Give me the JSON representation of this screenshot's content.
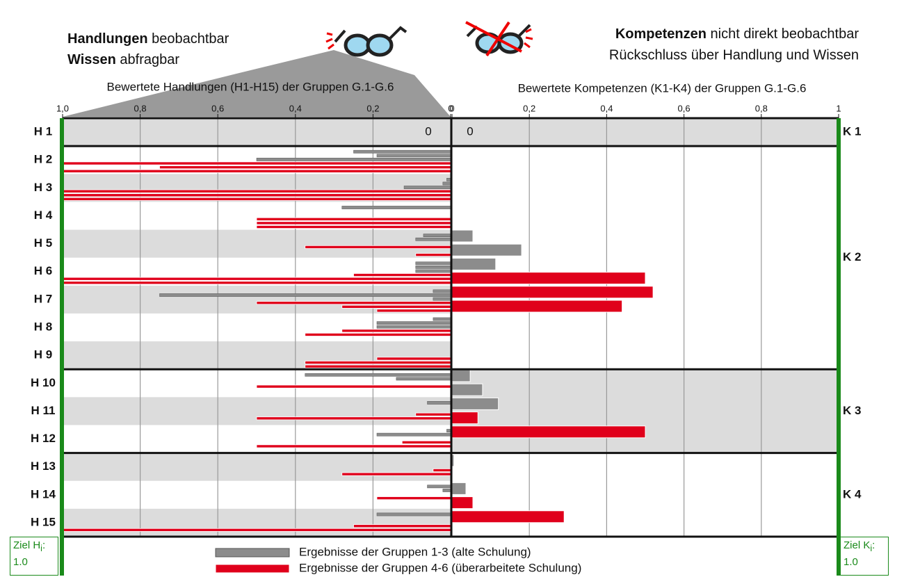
{
  "header": {
    "left_line1_bold": "Handlungen",
    "left_line1": " beobachtbar",
    "left_line2_bold": "Wissen",
    "left_line2": " abfragbar",
    "right_line1_bold": "Kompetenzen",
    "right_line1": " nicht direkt beobachtbar",
    "right_line2": "Rückschluss über Handlung und Wissen"
  },
  "goal_left": {
    "label": "Ziel H",
    "sub": "i",
    "colon": ":",
    "value": "1.0"
  },
  "goal_right": {
    "label": "Ziel K",
    "sub": "i",
    "colon": ":",
    "value": "1.0"
  },
  "chart_data": [
    {
      "type": "bar",
      "orientation": "horizontal",
      "title": "Bewertete Handlungen (H1-H15) der Gruppen G.1-G.6",
      "categories": [
        "H 1",
        "H 2",
        "H 3",
        "H 4",
        "H 5",
        "H 6",
        "H 7",
        "H 8",
        "H 9",
        "H 10",
        "H 11",
        "H 12",
        "H 13",
        "H 14",
        "H 15"
      ],
      "xlim": [
        1,
        0
      ],
      "xticks": [
        {
          "value": 1,
          "label": "1,0"
        },
        {
          "value": 0.8,
          "label": "0,8"
        },
        {
          "value": 0.6,
          "label": "0,6"
        },
        {
          "value": 0.4,
          "label": "0,4"
        },
        {
          "value": 0.2,
          "label": "0,2"
        },
        0
      ],
      "grid": true,
      "series": [
        {
          "name": "Ergebnisse der Gruppen 1-3 (alte Schulung)",
          "color": "#8c8c8c",
          "values": [
            [
              0,
              0,
              0
            ],
            [
              0.25,
              0.19,
              0.5
            ],
            [
              0.01,
              0.02,
              0.12
            ],
            [
              0.28,
              0,
              0
            ],
            [
              0.07,
              0.09,
              0
            ],
            [
              0.09,
              0.09,
              0.09
            ],
            [
              0.045,
              0.75,
              0.045
            ],
            [
              0.045,
              0.19,
              0.19
            ],
            [
              0,
              0,
              0
            ],
            [
              0.375,
              0.14,
              0
            ],
            [
              0.06,
              0,
              0
            ],
            [
              0.01,
              0.19,
              0
            ],
            [
              0,
              0,
              0
            ],
            [
              0.06,
              0.02,
              0
            ],
            [
              0.19,
              0,
              0
            ]
          ]
        },
        {
          "name": "Ergebnisse der Gruppen 4-6 (überarbeitete Schulung)",
          "color": "#e0001b",
          "values": [
            [
              0,
              0,
              0
            ],
            [
              1,
              0.75,
              1
            ],
            [
              1,
              1,
              1
            ],
            [
              0.5,
              0.5,
              0.5
            ],
            [
              0.375,
              0,
              0.09
            ],
            [
              0.25,
              1,
              1
            ],
            [
              0.5,
              0.28,
              0.19
            ],
            [
              0.28,
              0.375,
              0
            ],
            [
              0.19,
              0.375,
              0.375
            ],
            [
              0.5,
              0,
              0
            ],
            [
              0.09,
              0.5,
              0
            ],
            [
              0.125,
              0.5,
              0
            ],
            [
              0.045,
              0.28,
              0
            ],
            [
              0.19,
              0,
              0
            ],
            [
              0.25,
              1,
              0
            ]
          ]
        }
      ]
    },
    {
      "type": "bar",
      "orientation": "horizontal",
      "title": "Bewertete Kompetenzen (K1-K4) der Gruppen G.1-G.6",
      "categories": [
        "K 1",
        "K 2",
        "K 3",
        "K 4"
      ],
      "xlim": [
        0,
        1
      ],
      "xticks": [
        0,
        {
          "value": 0.2,
          "label": "0,2"
        },
        {
          "value": 0.4,
          "label": "0,4"
        },
        {
          "value": 0.6,
          "label": "0,6"
        },
        {
          "value": 0.8,
          "label": "0,8"
        },
        1
      ],
      "grid": true,
      "series": [
        {
          "color": "#8c8c8c",
          "values": [
            [
              0,
              0,
              0
            ],
            [
              0.054,
              0.18,
              0.113
            ],
            [
              0.047,
              0.079,
              0.12
            ],
            [
              0.005,
              0,
              0.036
            ]
          ]
        },
        {
          "color": "#e0001b",
          "values": [
            [
              0,
              0,
              0
            ],
            [
              0.5,
              0.52,
              0.44
            ],
            [
              0.067,
              0.5,
              0
            ],
            [
              0.054,
              0.29,
              0
            ]
          ]
        }
      ]
    }
  ]
}
